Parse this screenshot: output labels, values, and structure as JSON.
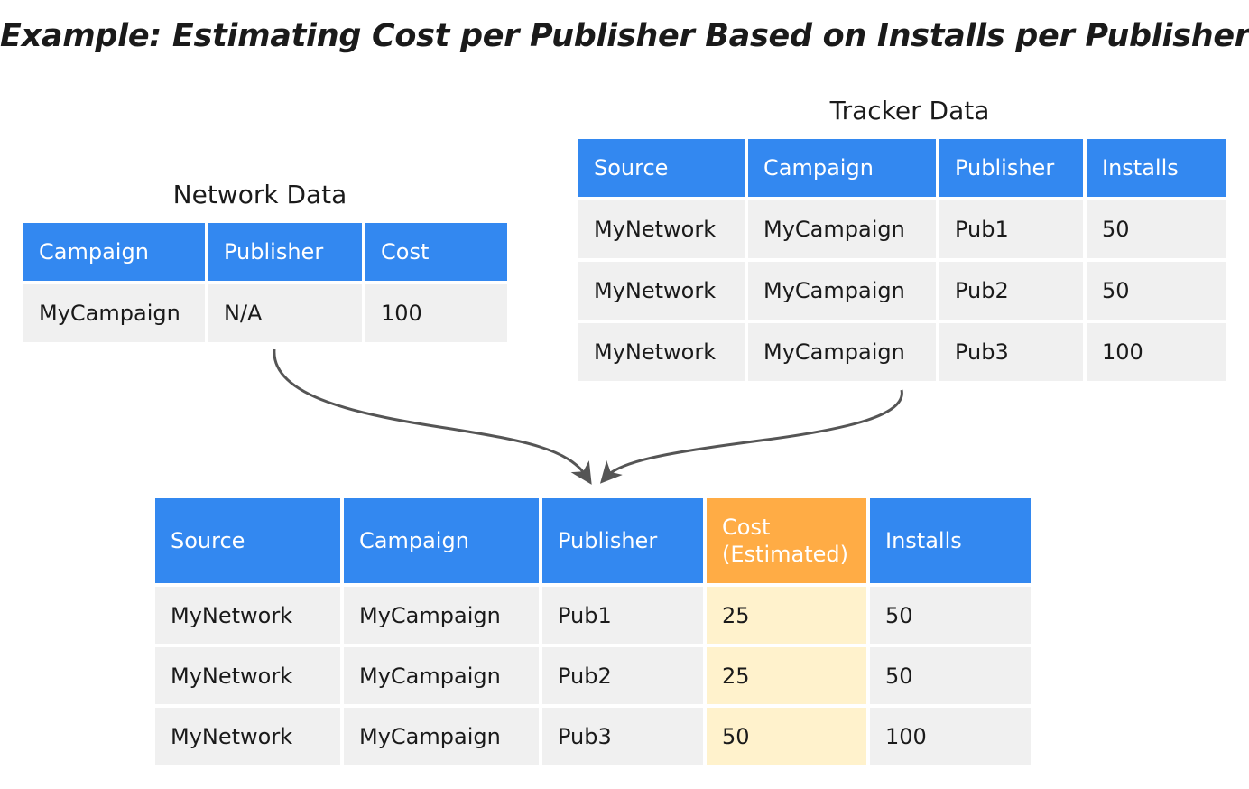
{
  "title": "Example: Estimating Cost per Publisher Based on Installs per Publisher",
  "network_data": {
    "caption": "Network Data",
    "headers": [
      "Campaign",
      "Publisher",
      "Cost"
    ],
    "rows": [
      [
        "MyCampaign",
        "N/A",
        "100"
      ]
    ]
  },
  "tracker_data": {
    "caption": "Tracker Data",
    "headers": [
      "Source",
      "Campaign",
      "Publisher",
      "Installs"
    ],
    "rows": [
      [
        "MyNetwork",
        "MyCampaign",
        "Pub1",
        "50"
      ],
      [
        "MyNetwork",
        "MyCampaign",
        "Pub2",
        "50"
      ],
      [
        "MyNetwork",
        "MyCampaign",
        "Pub3",
        "100"
      ]
    ]
  },
  "result": {
    "headers": [
      "Source",
      "Campaign",
      "Publisher",
      "Cost (Estimated)",
      "Installs"
    ],
    "highlight_column": 3,
    "rows": [
      [
        "MyNetwork",
        "MyCampaign",
        "Pub1",
        "25",
        "50"
      ],
      [
        "MyNetwork",
        "MyCampaign",
        "Pub2",
        "25",
        "50"
      ],
      [
        "MyNetwork",
        "MyCampaign",
        "Pub3",
        "50",
        "100"
      ]
    ]
  },
  "colors": {
    "header_blue": "#3388f0",
    "header_orange": "#ffac45",
    "cell_gray": "#f0f0f0",
    "cell_yellow": "#fff2cc",
    "arrow": "#555555"
  }
}
